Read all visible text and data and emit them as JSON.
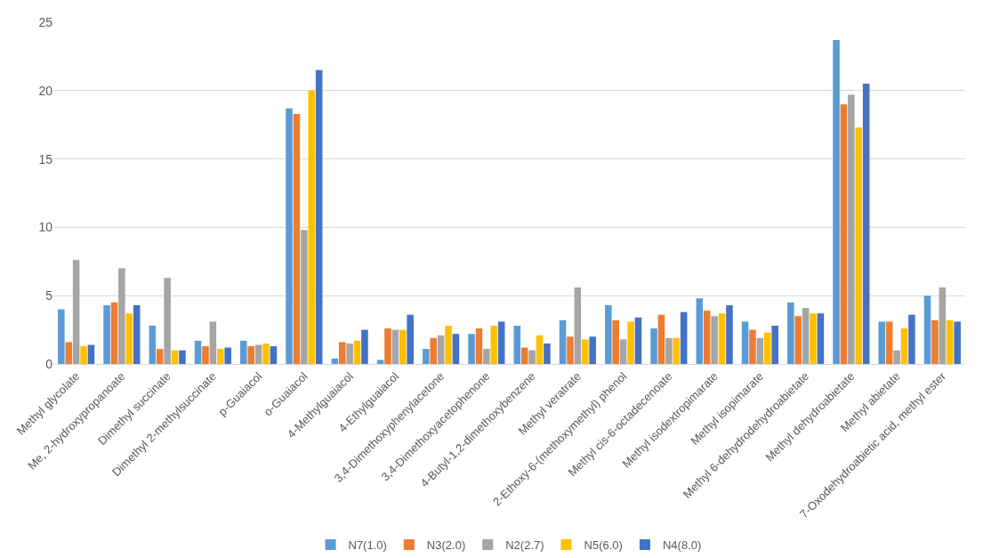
{
  "chart_data": {
    "type": "bar",
    "categories": [
      "Methyl glycolate",
      "Me, 2-hydroxypropanoate",
      "Dimethyl succinate",
      "Dimethyl 2-methylsuccinate",
      "p-Guaiacol",
      "o-Guaiacol",
      "4-Methylguaiacol",
      "4-Ethylguaiacol",
      "3,4-Dimethoxyphenylacetone",
      "3,4-Dimethoxyacetophenone",
      "4-Butyl-1,2-dimethoxybenzene",
      "Methyl veratrate",
      "2-Ethoxy-6-(methoxymethyl) phenol",
      "Methyl cis-6-octadecenoate",
      "Methyl isodextropimarate",
      "Methyl isopimarate",
      "Methyl 6-dehydrodehydroabietate",
      "Methyl dehydroabietate",
      "Methyl abietate",
      "7-Oxodehydroabietic acid, methyl ester"
    ],
    "series": [
      {
        "name": "N7(1.0)",
        "color": "#5b9bd5",
        "values": [
          4.0,
          4.3,
          2.8,
          1.7,
          1.7,
          18.7,
          0.4,
          0.3,
          1.1,
          2.2,
          2.8,
          3.2,
          4.3,
          2.6,
          4.8,
          3.1,
          4.5,
          23.7,
          3.1,
          5.0
        ]
      },
      {
        "name": "N3(2.0)",
        "color": "#ed7d31",
        "values": [
          1.6,
          4.5,
          1.1,
          1.3,
          1.3,
          18.3,
          1.6,
          2.6,
          1.9,
          2.6,
          1.2,
          2.0,
          3.2,
          3.6,
          3.9,
          2.5,
          3.5,
          19.0,
          3.1,
          3.2
        ]
      },
      {
        "name": "N2(2.7)",
        "color": "#a5a5a5",
        "values": [
          7.6,
          7.0,
          6.3,
          3.1,
          1.4,
          9.8,
          1.5,
          2.5,
          2.1,
          1.1,
          1.0,
          5.6,
          1.8,
          1.9,
          3.5,
          1.9,
          4.1,
          19.7,
          1.0,
          5.6
        ]
      },
      {
        "name": "N5(6.0)",
        "color": "#ffc000",
        "values": [
          1.3,
          3.7,
          1.0,
          1.1,
          1.5,
          20.0,
          1.7,
          2.5,
          2.8,
          2.8,
          2.1,
          1.8,
          3.1,
          1.9,
          3.7,
          2.3,
          3.7,
          17.3,
          2.6,
          3.2
        ]
      },
      {
        "name": "N4(8.0)",
        "color": "#4472c4",
        "values": [
          1.4,
          4.3,
          1.0,
          1.2,
          1.3,
          21.5,
          2.5,
          3.6,
          2.2,
          3.1,
          1.5,
          2.0,
          3.4,
          3.8,
          4.3,
          2.8,
          3.7,
          20.5,
          3.6,
          3.1
        ]
      }
    ],
    "ylim": [
      0,
      25
    ],
    "yticks": [
      0,
      5,
      10,
      15,
      20,
      25
    ],
    "grid": "y",
    "legend": "bottom"
  }
}
